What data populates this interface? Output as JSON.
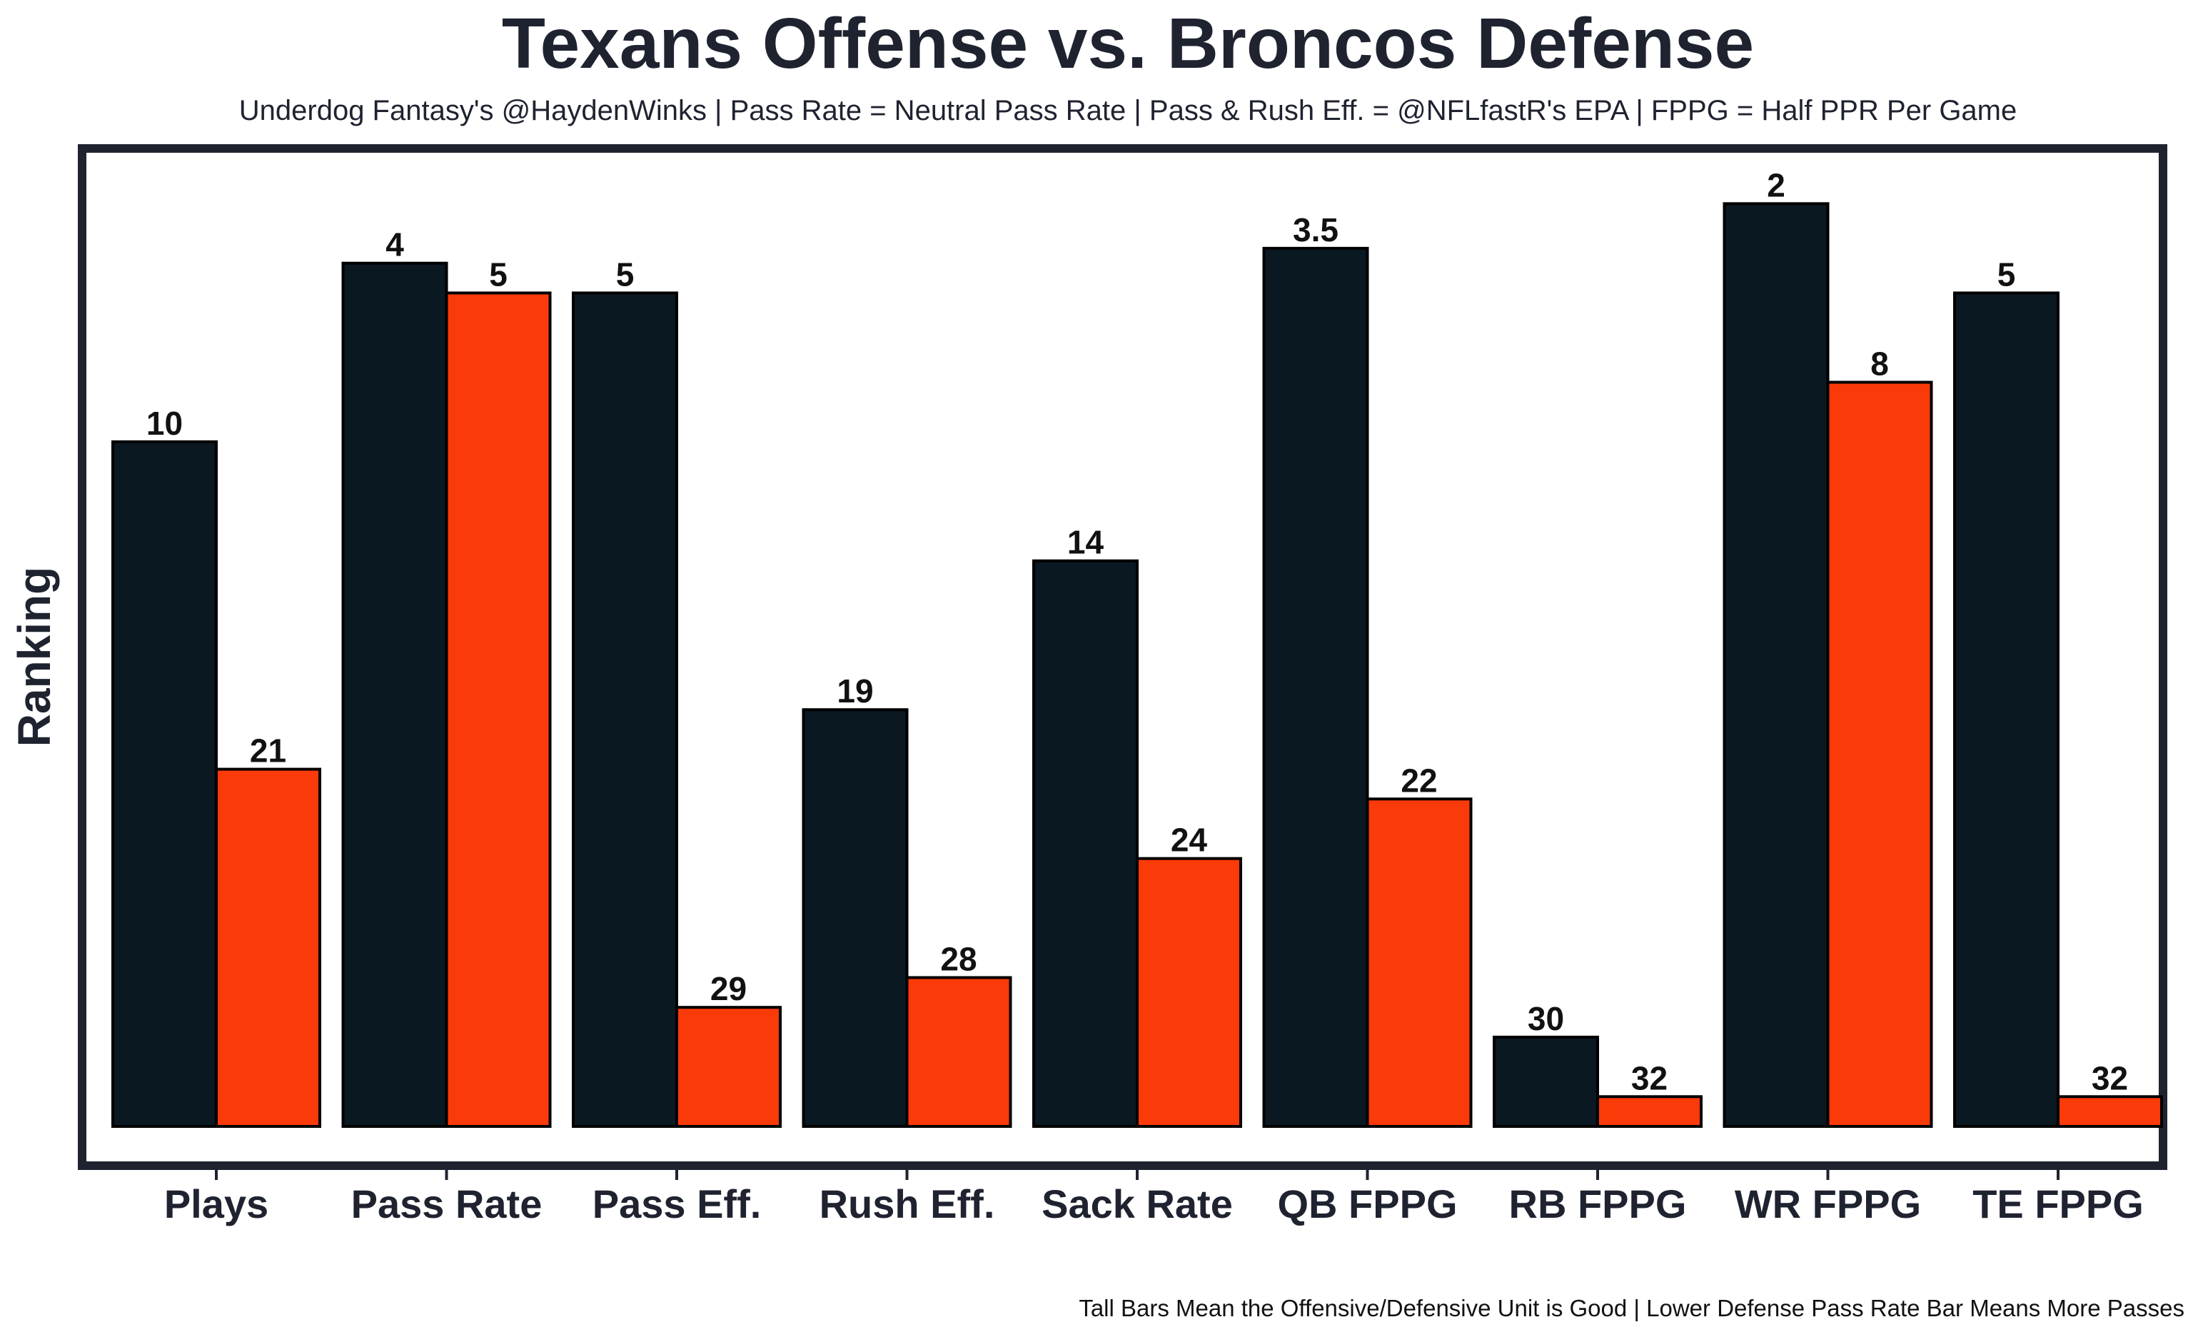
{
  "chart_data": {
    "type": "bar",
    "title": "Texans Offense vs. Broncos Defense",
    "subtitle": "Underdog Fantasy's @HaydenWinks | Pass Rate = Neutral Pass Rate | Pass & Rush Eff. = @NFLfastR's EPA | FPPG = Half PPR Per Game",
    "footnote": "Tall Bars Mean the Offensive/Defensive Unit is Good | Lower Defense Pass Rate Bar Means More Passes",
    "xlabel": "",
    "ylabel": "Ranking",
    "rank_range": [
      1,
      32
    ],
    "categories": [
      "Plays",
      "Pass Rate",
      "Pass Eff.",
      "Rush Eff.",
      "Sack Rate",
      "QB FPPG",
      "RB FPPG",
      "WR FPPG",
      "TE FPPG"
    ],
    "series": [
      {
        "name": "Texans Offense",
        "color": "#0a1822",
        "values": [
          10,
          4,
          5,
          19,
          14,
          3.5,
          30,
          2,
          5
        ],
        "labels": [
          "10",
          "4",
          "5",
          "19",
          "14",
          "3.5",
          "30",
          "2",
          "5"
        ]
      },
      {
        "name": "Broncos Defense",
        "color": "#fb3a09",
        "values": [
          21,
          5,
          29,
          28,
          24,
          22,
          32,
          8,
          32
        ],
        "labels": [
          "21",
          "5",
          "29",
          "28",
          "24",
          "22",
          "32",
          "8",
          "32"
        ]
      }
    ],
    "grid": false,
    "legend": "none"
  }
}
